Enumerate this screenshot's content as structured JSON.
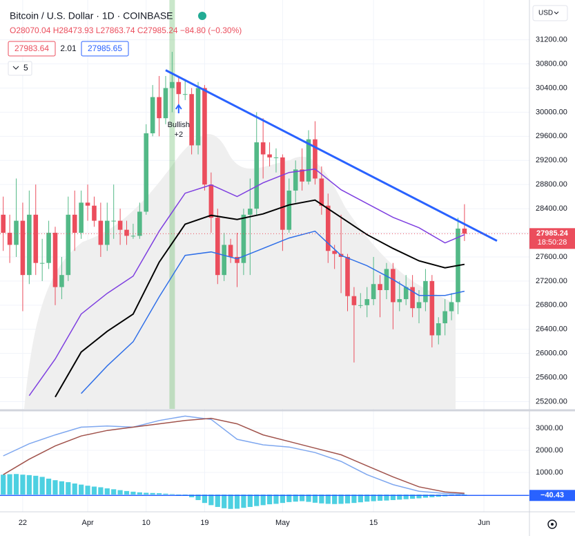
{
  "chart_data": [
    {
      "type": "candlestick",
      "title": "Bitcoin / U.S. Dollar · 1D · COINBASE",
      "ohlc_text": "O28070.04 H28473.93 L27863.74 C27985.24 −84.80 (−0.30%)",
      "bid": "27983.64",
      "spread": "2.01",
      "ask": "27985.65",
      "indicator_count": "5",
      "currency": "USD",
      "countdown": "18:50:28",
      "last_price": {
        "value": 27985.24,
        "label": "27985.24"
      },
      "up_color": "#53b987",
      "down_color": "#eb4d5c",
      "xlim": [
        -0.5,
        81
      ],
      "ylim": [
        25080,
        31860
      ],
      "xticks": [
        {
          "value": 3,
          "label": "22"
        },
        {
          "value": 13,
          "label": "Apr"
        },
        {
          "value": 22,
          "label": "10"
        },
        {
          "value": 31,
          "label": "19"
        },
        {
          "value": 43,
          "label": "May"
        },
        {
          "value": 57,
          "label": "15"
        },
        {
          "value": 74,
          "label": "Jun"
        }
      ],
      "yticks": [
        {
          "value": 25200,
          "label": "25200.00"
        },
        {
          "value": 25600,
          "label": "25600.00"
        },
        {
          "value": 26000,
          "label": "26000.00"
        },
        {
          "value": 26400,
          "label": "26400.00"
        },
        {
          "value": 26800,
          "label": "26800.00"
        },
        {
          "value": 27200,
          "label": "27200.00"
        },
        {
          "value": 27600,
          "label": "27600.00"
        },
        {
          "value": 28000,
          "label": "28000.00"
        },
        {
          "value": 28400,
          "label": "28400.00"
        },
        {
          "value": 28800,
          "label": "28800.00"
        },
        {
          "value": 29200,
          "label": "29200.00"
        },
        {
          "value": 29600,
          "label": "29600.00"
        },
        {
          "value": 30000,
          "label": "30000.00"
        },
        {
          "value": 30400,
          "label": "30400.00"
        },
        {
          "value": 30800,
          "label": "30800.00"
        },
        {
          "value": 31200,
          "label": "31200.00"
        }
      ],
      "grid": true,
      "x": [
        0,
        1,
        2,
        3,
        4,
        5,
        6,
        7,
        8,
        9,
        10,
        11,
        12,
        13,
        14,
        15,
        16,
        17,
        18,
        19,
        20,
        21,
        22,
        23,
        24,
        25,
        26,
        27,
        28,
        29,
        30,
        31,
        32,
        33,
        34,
        35,
        36,
        37,
        38,
        39,
        40,
        41,
        42,
        43,
        44,
        45,
        46,
        47,
        48,
        49,
        50,
        51,
        52,
        53,
        54,
        55,
        56,
        57,
        58,
        59,
        60,
        61,
        62,
        63,
        64,
        65,
        66,
        67,
        68,
        69,
        70,
        71
      ],
      "open": [
        28300,
        28000,
        27800,
        28200,
        27300,
        28300,
        27500,
        27500,
        28000,
        27100,
        27300,
        28300,
        28000,
        28500,
        28450,
        28200,
        27800,
        28200,
        28200,
        28050,
        27950,
        27950,
        28350,
        29650,
        30250,
        29900,
        30400,
        30500,
        30300,
        30300,
        29450,
        30400,
        28800,
        28250,
        27300,
        27800,
        27600,
        27500,
        28300,
        28400,
        29500,
        29300,
        29250,
        29250,
        28050,
        28700,
        29050,
        28850,
        29550,
        28900,
        28450,
        27700,
        27650,
        27600,
        26950,
        26800,
        26800,
        26900,
        27150,
        27050,
        27400,
        26850,
        26900,
        27100,
        26750,
        26850,
        27200,
        26300,
        26500,
        26700,
        26850,
        28070.04
      ],
      "high": [
        28600,
        28300,
        28900,
        28500,
        28700,
        28800,
        27900,
        28200,
        28100,
        27600,
        28600,
        28700,
        28700,
        28800,
        28600,
        28500,
        28500,
        28800,
        28400,
        28200,
        28150,
        28500,
        29800,
        30450,
        30600,
        30600,
        31000,
        30600,
        30550,
        30400,
        30500,
        30450,
        29000,
        28400,
        28000,
        27900,
        28000,
        28400,
        28900,
        30000,
        29900,
        29500,
        29400,
        29300,
        28900,
        29200,
        29400,
        29700,
        29850,
        29100,
        28650,
        27800,
        28300,
        27650,
        27100,
        27000,
        27100,
        27600,
        27300,
        27500,
        27500,
        27200,
        27300,
        27300,
        27050,
        27400,
        27300,
        26600,
        26900,
        27000,
        28250,
        28473.93
      ],
      "low": [
        27700,
        27500,
        27600,
        26700,
        27150,
        27300,
        27200,
        27400,
        26800,
        26900,
        27200,
        27700,
        27900,
        28200,
        28100,
        27600,
        27700,
        27900,
        27800,
        27800,
        27900,
        27900,
        28300,
        29600,
        29600,
        29800,
        30000,
        30100,
        30200,
        29300,
        29300,
        28700,
        28000,
        27150,
        27200,
        27500,
        27100,
        27300,
        27300,
        28300,
        28900,
        29100,
        29000,
        27700,
        28000,
        28500,
        28700,
        28800,
        28800,
        28300,
        27500,
        27400,
        27000,
        26700,
        25850,
        26750,
        26600,
        26800,
        26600,
        26900,
        26400,
        26700,
        26800,
        26600,
        26500,
        26700,
        26100,
        26150,
        26300,
        26550,
        26650,
        27863.74
      ],
      "close": [
        28000,
        27800,
        28200,
        27300,
        28300,
        27500,
        27500,
        28000,
        27100,
        27300,
        28300,
        28000,
        28500,
        28450,
        28200,
        27800,
        28200,
        28200,
        28050,
        27950,
        27950,
        28350,
        29650,
        30250,
        29900,
        30400,
        30500,
        30300,
        30300,
        29450,
        30400,
        28800,
        28250,
        27300,
        27800,
        27600,
        27500,
        28300,
        28400,
        29500,
        29300,
        29250,
        29250,
        28050,
        28700,
        29050,
        28850,
        29550,
        28900,
        28450,
        27700,
        27650,
        27600,
        26950,
        26800,
        26800,
        26900,
        27150,
        27050,
        27400,
        26850,
        26900,
        27100,
        26750,
        26850,
        27200,
        26300,
        26500,
        26700,
        26850,
        28070.04,
        27985.24
      ],
      "lines": [
        {
          "color": "#7e3fe0",
          "x": [
            0,
            4,
            8,
            12,
            16,
            20,
            24,
            28,
            32,
            36,
            40,
            44,
            48,
            52,
            56,
            60,
            64,
            68,
            71
          ],
          "values": [
            null,
            25300,
            25908,
            26653,
            26996,
            27282,
            28027,
            28657,
            28795,
            28600,
            28829,
            29000,
            29058,
            28714,
            28485,
            28256,
            28084,
            27832,
            27970
          ]
        },
        {
          "color": "#000000",
          "x": [
            0,
            4,
            8,
            12,
            16,
            20,
            24,
            28,
            32,
            36,
            40,
            44,
            48,
            52,
            56,
            60,
            64,
            68,
            71
          ],
          "values": [
            null,
            null,
            25278,
            26022,
            26366,
            26653,
            27512,
            28142,
            28290,
            28222,
            28313,
            28462,
            28542,
            28256,
            27970,
            27741,
            27535,
            27420,
            27477
          ]
        },
        {
          "color": "#2f6fe8",
          "x": [
            0,
            4,
            8,
            12,
            16,
            20,
            24,
            28,
            32,
            36,
            40,
            44,
            48,
            52,
            56,
            60,
            64,
            68,
            71
          ],
          "values": [
            null,
            null,
            null,
            25335,
            25793,
            26194,
            26939,
            27626,
            27683,
            27569,
            27741,
            27913,
            28027,
            27626,
            27454,
            27225,
            26962,
            26962,
            27031
          ]
        }
      ],
      "trendline": {
        "color": "#2962ff",
        "x": [
          25,
          76
        ],
        "y": [
          30696,
          27867
        ]
      },
      "highlight_x": 26,
      "signal": {
        "x": 27,
        "labels": [
          "Bullish",
          "+2"
        ]
      }
    },
    {
      "type": "macd",
      "xlim": [
        -0.5,
        81
      ],
      "ylim": [
        -750,
        3750
      ],
      "yticks": [
        {
          "value": 1000,
          "label": "1000.00"
        },
        {
          "value": 2000,
          "label": "2000.00"
        },
        {
          "value": 3000,
          "label": "3000.00"
        }
      ],
      "value_label": {
        "value": -40.43,
        "label": "−40.43"
      },
      "x": [
        0,
        1,
        2,
        3,
        4,
        5,
        6,
        7,
        8,
        9,
        10,
        11,
        12,
        13,
        14,
        15,
        16,
        17,
        18,
        19,
        20,
        21,
        22,
        23,
        24,
        25,
        26,
        27,
        28,
        29,
        30,
        31,
        32,
        33,
        34,
        35,
        36,
        37,
        38,
        39,
        40,
        41,
        42,
        43,
        44,
        45,
        46,
        47,
        48,
        49,
        50,
        51,
        52,
        53,
        54,
        55,
        56,
        57,
        58,
        59,
        60,
        61,
        62,
        63,
        64,
        65,
        66,
        67,
        68,
        69,
        70,
        71
      ],
      "histogram": {
        "color": "#4dd0e1",
        "values": [
          900,
          920,
          930,
          900,
          880,
          850,
          800,
          720,
          650,
          600,
          560,
          500,
          450,
          400,
          360,
          330,
          280,
          240,
          200,
          160,
          130,
          100,
          80,
          70,
          60,
          40,
          20,
          0,
          -40,
          -120,
          -250,
          -380,
          -480,
          -560,
          -620,
          -650,
          -640,
          -600,
          -560,
          -520,
          -480,
          -440,
          -420,
          -380,
          -340,
          -320,
          -300,
          -330,
          -370,
          -400,
          -420,
          -430,
          -420,
          -400,
          -380,
          -350,
          -320,
          -300,
          -280,
          -270,
          -250,
          -230,
          -210,
          -190,
          -170,
          -140,
          -120,
          -100,
          -80,
          -60,
          -50,
          -40
        ]
      },
      "lines": [
        {
          "color": "#7ea7ef",
          "x": [
            0,
            4,
            8,
            12,
            16,
            20,
            24,
            28,
            32,
            36,
            40,
            44,
            48,
            52,
            56,
            60,
            64,
            68,
            71
          ],
          "values": [
            1750,
            2300,
            2700,
            3050,
            3100,
            3050,
            3350,
            3550,
            3400,
            2500,
            2250,
            2150,
            1900,
            1500,
            900,
            450,
            150,
            50,
            20
          ]
        },
        {
          "color": "#a0524b",
          "x": [
            0,
            4,
            8,
            12,
            16,
            20,
            24,
            28,
            32,
            36,
            40,
            44,
            48,
            52,
            56,
            60,
            64,
            68,
            71
          ],
          "values": [
            900,
            1600,
            2200,
            2650,
            2900,
            3050,
            3200,
            3350,
            3450,
            3200,
            2700,
            2400,
            2100,
            1800,
            1300,
            800,
            350,
            120,
            60
          ]
        }
      ]
    }
  ]
}
